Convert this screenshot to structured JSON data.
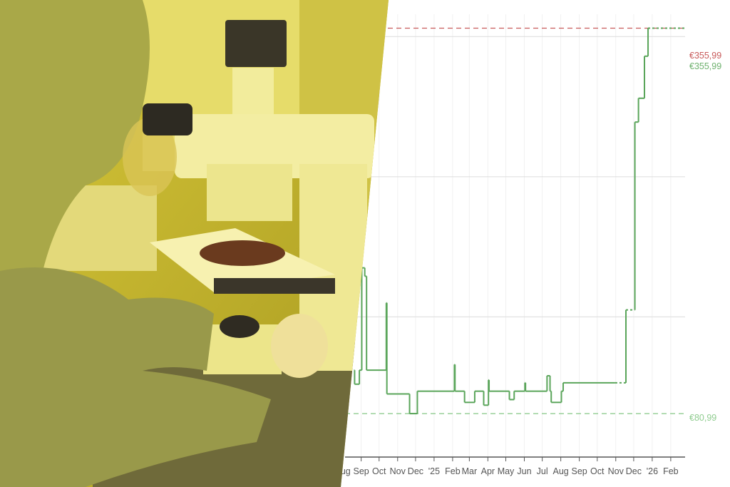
{
  "photo": {
    "description_visible": false
  },
  "chart_data": {
    "type": "line",
    "line_style": "step",
    "xlim": [
      "2024-08-05",
      "2026-02-25"
    ],
    "ylim": [
      50,
      365
    ],
    "grid_y_values": [
      150,
      250,
      350
    ],
    "grid": true,
    "x_tick_labels": [
      {
        "date": "2024-08-01",
        "label": "Aug"
      },
      {
        "date": "2024-09-01",
        "label": "Sep"
      },
      {
        "date": "2024-10-01",
        "label": "Oct"
      },
      {
        "date": "2024-11-01",
        "label": "Nov"
      },
      {
        "date": "2024-12-01",
        "label": "Dec"
      },
      {
        "date": "2025-01-01",
        "label": "'25"
      },
      {
        "date": "2025-02-01",
        "label": "Feb"
      },
      {
        "date": "2025-03-01",
        "label": "Mar"
      },
      {
        "date": "2025-04-01",
        "label": "Apr"
      },
      {
        "date": "2025-05-01",
        "label": "May"
      },
      {
        "date": "2025-06-01",
        "label": "Jun"
      },
      {
        "date": "2025-07-01",
        "label": "Jul"
      },
      {
        "date": "2025-08-01",
        "label": "Aug"
      },
      {
        "date": "2025-09-01",
        "label": "Sep"
      },
      {
        "date": "2025-10-01",
        "label": "Oct"
      },
      {
        "date": "2025-11-01",
        "label": "Nov"
      },
      {
        "date": "2025-12-01",
        "label": "Dec"
      },
      {
        "date": "2026-01-01",
        "label": "'26"
      },
      {
        "date": "2026-02-01",
        "label": "Feb"
      }
    ],
    "series": [
      {
        "color": "#5aa55a",
        "points": [
          [
            "2024-08-20",
            112
          ],
          [
            "2024-08-21",
            102
          ],
          [
            "2024-08-29",
            112
          ],
          [
            "2024-09-02",
            185
          ],
          [
            "2024-09-07",
            179
          ],
          [
            "2024-09-10",
            112
          ],
          [
            "2024-10-13",
            160
          ],
          [
            "2024-10-14",
            95
          ],
          [
            "2024-11-21",
            81
          ],
          [
            "2024-12-04",
            97
          ],
          [
            "2025-02-04",
            116
          ],
          [
            "2025-02-05",
            97
          ],
          [
            "2025-02-21",
            89
          ],
          [
            "2025-03-10",
            97
          ],
          [
            "2025-03-25",
            87
          ],
          [
            "2025-04-02",
            105
          ],
          [
            "2025-04-03",
            97
          ],
          [
            "2025-05-07",
            91
          ],
          [
            "2025-05-15",
            97
          ],
          [
            "2025-06-02",
            103
          ],
          [
            "2025-06-03",
            97
          ],
          [
            "2025-07-09",
            108
          ],
          [
            "2025-07-14",
            97
          ],
          [
            "2025-07-16",
            89
          ],
          [
            "2025-08-02",
            97
          ],
          [
            "2025-08-05",
            103
          ],
          [
            "2025-10-31",
            103,
            "dotted"
          ],
          [
            "2025-11-18",
            155,
            "dotted"
          ],
          [
            "2025-12-03",
            289
          ],
          [
            "2025-12-09",
            306
          ],
          [
            "2025-12-19",
            336
          ],
          [
            "2025-12-25",
            355.99,
            "dotted"
          ],
          [
            "2026-02-25",
            355.99
          ]
        ]
      }
    ],
    "reference_lines": [
      {
        "value": 355.99,
        "label": "€355,99",
        "color": "#c85a5a",
        "style": "dashed",
        "kind": "highest"
      },
      {
        "value": 355.99,
        "label": "€355,99",
        "color": "#6fb26f",
        "style": "none",
        "kind": "current"
      },
      {
        "value": 80.99,
        "label": "€80,99",
        "color": "#8fcc8f",
        "style": "dashed",
        "kind": "lowest"
      }
    ]
  }
}
